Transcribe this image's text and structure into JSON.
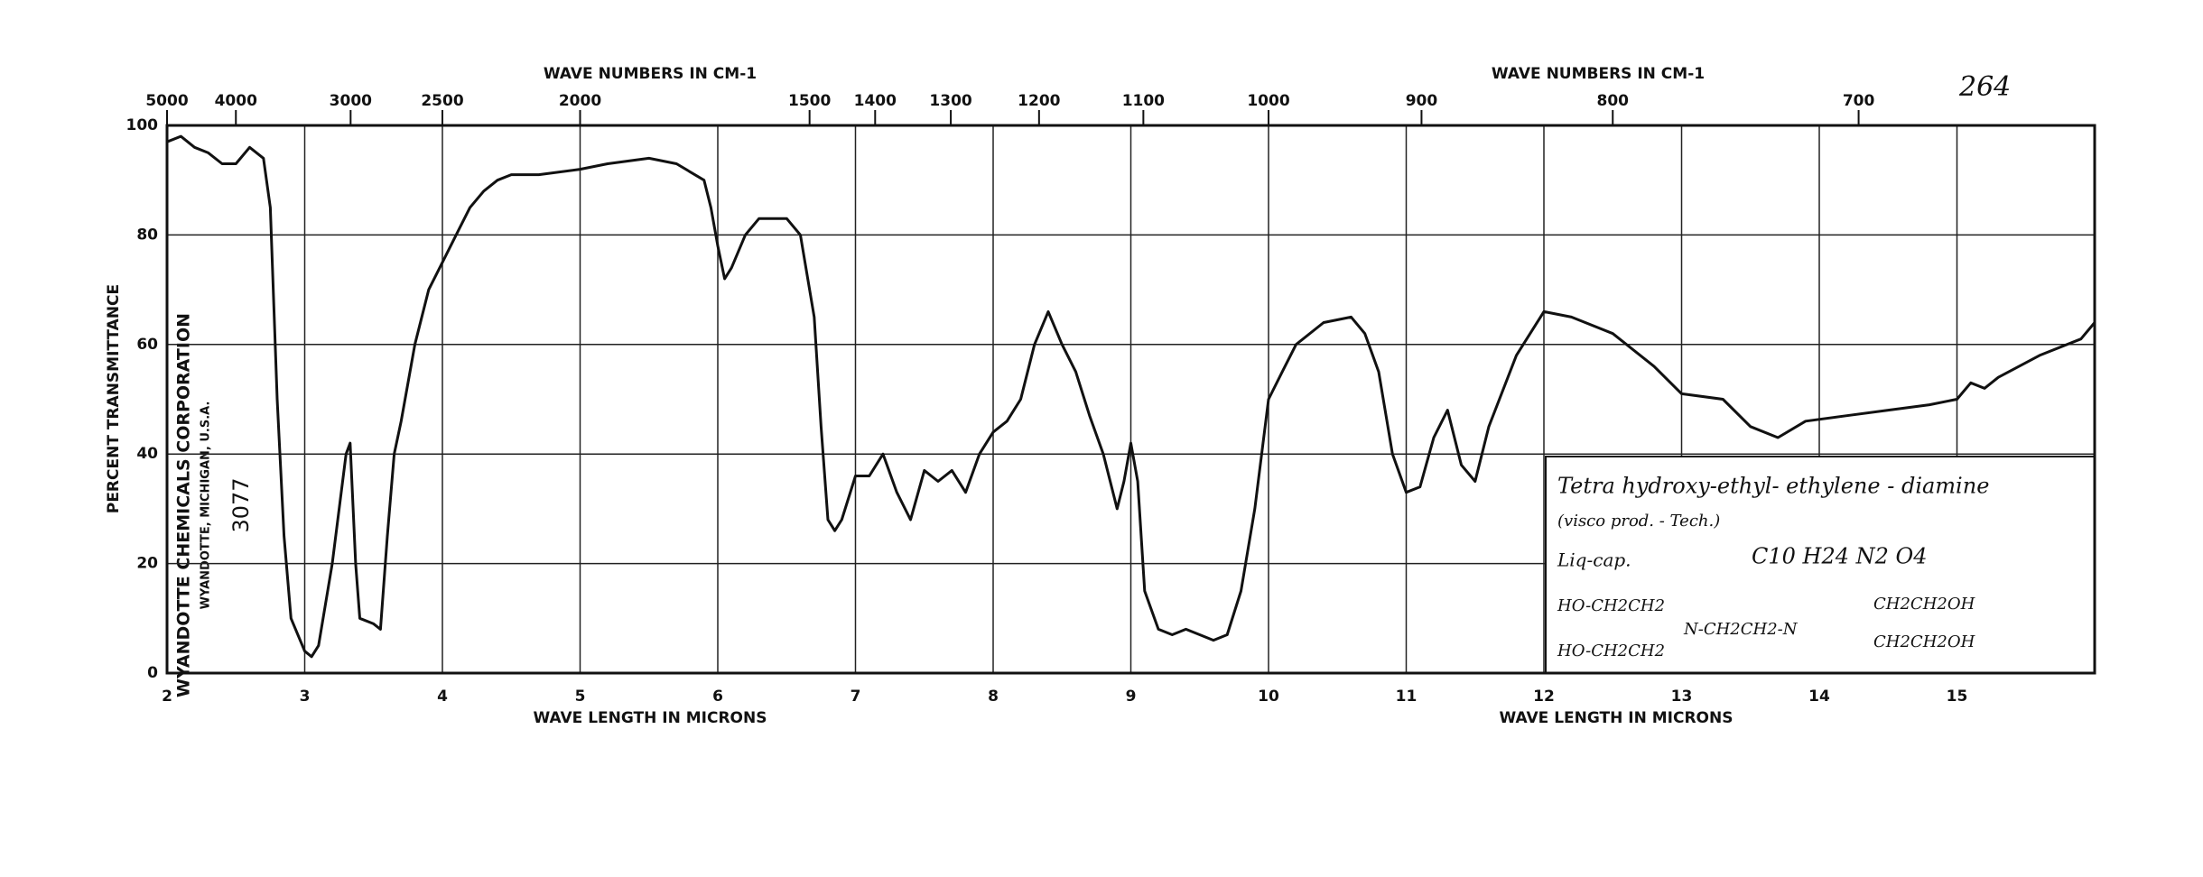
{
  "chart_data": {
    "type": "line",
    "top_axis_label": "WAVE NUMBERS IN CM-1",
    "top_axis_label_right": "WAVE NUMBERS IN CM-1",
    "xlabel": "WAVE LENGTH IN MICRONS",
    "xlabel_right": "WAVE LENGTH IN MICRONS",
    "ylabel": "PERCENT TRANSMITTANCE",
    "sheet_number": "264",
    "company": "WYANDOTTE CHEMICALS CORPORATION",
    "company_address": "WYANDOTTE, MICHIGAN, U.S.A.",
    "spectrum_number": "3077",
    "annotation": {
      "compound": "Tetra hydroxy-ethyl- ethylene - diamine",
      "grade": "(visco prod. - Tech.)",
      "method": "Liq-cap.",
      "formula": "C10 H24 N2 O4",
      "structure_top_left": "HO-CH2CH2",
      "structure_bottom_left": "HO-CH2CH2",
      "structure_center": "N-CH2CH2-N",
      "structure_top_right": "CH2CH2OH",
      "structure_bottom_right": "CH2CH2OH"
    },
    "x": [
      2.0,
      2.1,
      2.2,
      2.3,
      2.4,
      2.5,
      2.6,
      2.7,
      2.75,
      2.8,
      2.85,
      2.9,
      3.0,
      3.05,
      3.1,
      3.2,
      3.3,
      3.33,
      3.37,
      3.4,
      3.5,
      3.55,
      3.6,
      3.65,
      3.7,
      3.8,
      3.9,
      4.0,
      4.1,
      4.2,
      4.3,
      4.4,
      4.5,
      4.7,
      5.0,
      5.2,
      5.5,
      5.7,
      5.9,
      5.95,
      6.0,
      6.05,
      6.1,
      6.2,
      6.3,
      6.5,
      6.6,
      6.7,
      6.75,
      6.8,
      6.85,
      6.9,
      7.0,
      7.1,
      7.2,
      7.3,
      7.4,
      7.5,
      7.6,
      7.7,
      7.8,
      7.9,
      8.0,
      8.1,
      8.2,
      8.3,
      8.4,
      8.5,
      8.6,
      8.7,
      8.8,
      8.9,
      8.95,
      9.0,
      9.05,
      9.1,
      9.2,
      9.3,
      9.4,
      9.5,
      9.6,
      9.7,
      9.8,
      9.9,
      10.0,
      10.1,
      10.2,
      10.4,
      10.6,
      10.7,
      10.8,
      10.9,
      11.0,
      11.1,
      11.2,
      11.3,
      11.4,
      11.5,
      11.6,
      11.8,
      12.0,
      12.2,
      12.5,
      12.8,
      13.0,
      13.3,
      13.5,
      13.7,
      13.9,
      14.2,
      14.5,
      14.8,
      15.0,
      15.1,
      15.2,
      15.3,
      15.6,
      15.9,
      16.0
    ],
    "series": [
      {
        "color": "#111111",
        "values": [
          97,
          98,
          96,
          95,
          93,
          93,
          96,
          94,
          85,
          50,
          25,
          10,
          4,
          3,
          5,
          20,
          40,
          42,
          20,
          10,
          9,
          8,
          25,
          40,
          46,
          60,
          70,
          75,
          80,
          85,
          88,
          90,
          91,
          91,
          92,
          93,
          94,
          93,
          90,
          85,
          78,
          72,
          74,
          80,
          83,
          83,
          80,
          65,
          45,
          28,
          26,
          28,
          36,
          36,
          40,
          33,
          28,
          37,
          35,
          37,
          33,
          40,
          44,
          46,
          50,
          60,
          66,
          60,
          55,
          47,
          40,
          30,
          35,
          42,
          35,
          15,
          8,
          7,
          8,
          7,
          6,
          7,
          15,
          30,
          50,
          55,
          60,
          64,
          65,
          62,
          55,
          40,
          33,
          34,
          43,
          48,
          38,
          35,
          45,
          58,
          66,
          65,
          62,
          56,
          51,
          50,
          45,
          43,
          46,
          47,
          48,
          49,
          50,
          53,
          52,
          54,
          58,
          61,
          64
        ]
      }
    ],
    "xlim": [
      2,
      16
    ],
    "xticks": [
      2,
      3,
      4,
      5,
      6,
      7,
      8,
      9,
      10,
      11,
      12,
      13,
      14,
      15
    ],
    "x2ticks": [
      5000,
      4000,
      3000,
      2500,
      2000,
      1500,
      1400,
      1300,
      1200,
      1100,
      1000,
      900,
      800,
      700
    ],
    "ylim": [
      0,
      100
    ],
    "yticks": [
      0,
      20,
      40,
      60,
      80,
      100
    ],
    "grid": true
  }
}
